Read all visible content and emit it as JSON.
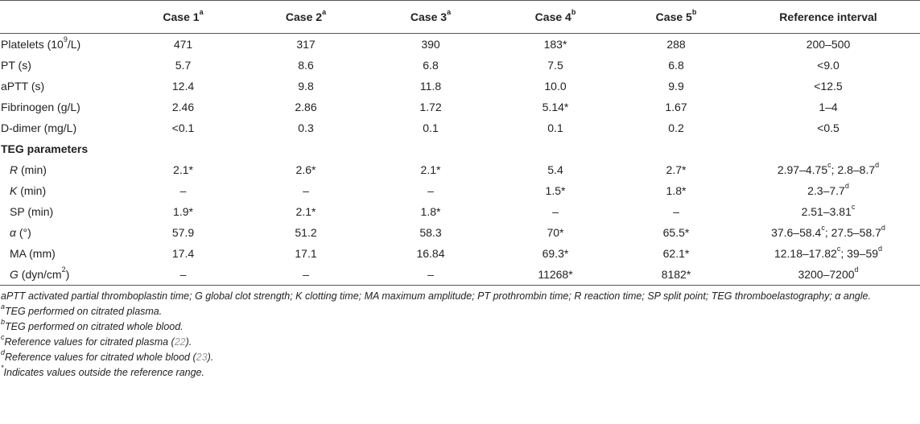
{
  "headers": {
    "col0": "",
    "case1": "Case 1",
    "case1_sup": "a",
    "case2": "Case 2",
    "case2_sup": "a",
    "case3": "Case 3",
    "case3_sup": "a",
    "case4": "Case 4",
    "case4_sup": "b",
    "case5": "Case 5",
    "case5_sup": "b",
    "ref": "Reference interval"
  },
  "rows": {
    "platelets": {
      "label_a": "Platelets (10",
      "label_sup": "9",
      "label_b": "/L)",
      "v": [
        "471",
        "317",
        "390",
        "183*",
        "288"
      ],
      "ref": "200–500"
    },
    "pt": {
      "label": "PT (s)",
      "v": [
        "5.7",
        "8.6",
        "6.8",
        "7.5",
        "6.8"
      ],
      "ref": "<9.0"
    },
    "aptt": {
      "label": "aPTT (s)",
      "v": [
        "12.4",
        "9.8",
        "11.8",
        "10.0",
        "9.9"
      ],
      "ref": "<12.5"
    },
    "fibrinogen": {
      "label": "Fibrinogen (g/L)",
      "v": [
        "2.46",
        "2.86",
        "1.72",
        "5.14*",
        "1.67"
      ],
      "ref": "1–4"
    },
    "ddimer": {
      "label": "D-dimer (mg/L)",
      "v": [
        "<0.1",
        "0.3",
        "0.1",
        "0.1",
        "0.2"
      ],
      "ref": "<0.5"
    },
    "teg": {
      "label": "TEG parameters"
    },
    "r": {
      "label_i": "R",
      "label_b": " (min)",
      "v": [
        "2.1*",
        "2.6*",
        "2.1*",
        "5.4",
        "2.7*"
      ],
      "ref_a": "2.97–4.75",
      "ref_sa": "c",
      "ref_b": "; 2.8–8.7",
      "ref_sb": "d"
    },
    "k": {
      "label_i": "K",
      "label_b": " (min)",
      "v": [
        "–",
        "–",
        "–",
        "1.5*",
        "1.8*"
      ],
      "ref_a": "2.3–7.7",
      "ref_sa": "d"
    },
    "sp": {
      "label": "SP (min)",
      "v": [
        "1.9*",
        "2.1*",
        "1.8*",
        "–",
        "–"
      ],
      "ref_a": "2.51–3.81",
      "ref_sa": "c"
    },
    "alpha": {
      "label_i": "α",
      "label_b": " (°)",
      "v": [
        "57.9",
        "51.2",
        "58.3",
        "70*",
        "65.5*"
      ],
      "ref_a": "37.6–58.4",
      "ref_sa": "c",
      "ref_b": "; 27.5–58.7",
      "ref_sb": "d"
    },
    "ma": {
      "label": "MA (mm)",
      "v": [
        "17.4",
        "17.1",
        "16.84",
        "69.3*",
        "62.1*"
      ],
      "ref_a": "12.18–17.82",
      "ref_sa": "c",
      "ref_b": "; 39–59",
      "ref_sb": "d"
    },
    "g": {
      "label_i": "G",
      "label_b": " (dyn/cm",
      "label_sup": "2",
      "label_c": ")",
      "v": [
        "–",
        "–",
        "–",
        "11268*",
        "8182*"
      ],
      "ref_a": "3200–7200",
      "ref_sa": "d"
    }
  },
  "footnotes": {
    "abbrev": "aPTT activated partial thromboplastin time; G global clot strength; K clotting time; MA maximum amplitude; PT prothrombin time; R reaction time; SP split point; TEG thromboelastography; α angle.",
    "a_sup": "a",
    "a": "TEG performed on citrated plasma.",
    "b_sup": "b",
    "b": "TEG performed on citrated whole blood.",
    "c_sup": "c",
    "c_a": "Reference values for citrated plasma (",
    "c_ref": "22",
    "c_b": ").",
    "d_sup": "d",
    "d_a": "Reference values for citrated whole blood (",
    "d_ref": "23",
    "d_b": ").",
    "star_sup": "*",
    "star": "Indicates values outside the reference range."
  }
}
